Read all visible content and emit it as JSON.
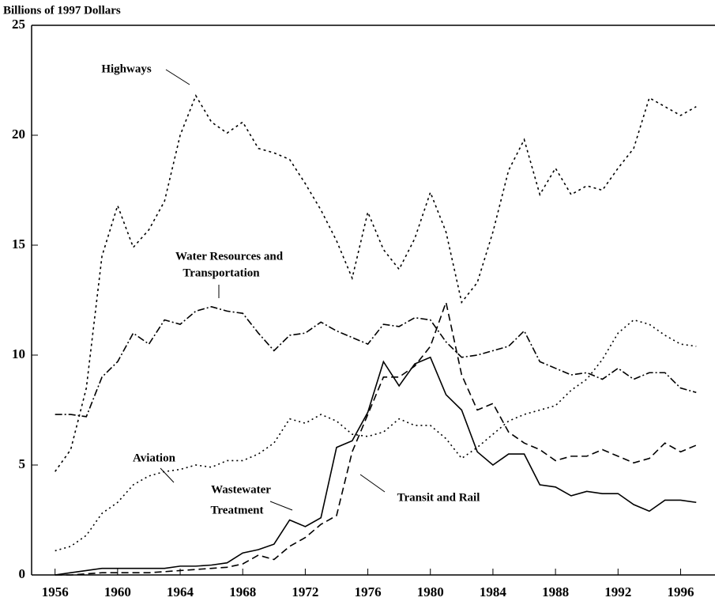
{
  "chart_data": {
    "type": "line",
    "ylabel": "Billions of 1997 Dollars",
    "x": [
      1956,
      1957,
      1958,
      1959,
      1960,
      1961,
      1962,
      1963,
      1964,
      1965,
      1966,
      1967,
      1968,
      1969,
      1970,
      1971,
      1972,
      1973,
      1974,
      1975,
      1976,
      1977,
      1978,
      1979,
      1980,
      1981,
      1982,
      1983,
      1984,
      1985,
      1986,
      1987,
      1988,
      1989,
      1990,
      1991,
      1992,
      1993,
      1994,
      1995,
      1996,
      1997
    ],
    "xlim": [
      1954.5,
      1998.2
    ],
    "xticks": [
      1956,
      1960,
      1964,
      1968,
      1972,
      1976,
      1980,
      1984,
      1988,
      1992,
      1996
    ],
    "ylim": [
      0,
      25
    ],
    "yticks": [
      0,
      5,
      10,
      15,
      20,
      25
    ],
    "series": [
      {
        "name": "Highways",
        "color": "#000000",
        "dash": "3,4",
        "values": [
          4.7,
          5.7,
          8.5,
          14.5,
          16.8,
          14.9,
          15.7,
          17.0,
          20.0,
          21.8,
          20.6,
          20.1,
          20.6,
          19.4,
          19.2,
          18.9,
          17.8,
          16.6,
          15.2,
          13.5,
          16.5,
          14.8,
          13.9,
          15.3,
          17.4,
          15.6,
          12.4,
          13.3,
          15.6,
          18.4,
          19.8,
          17.3,
          18.5,
          17.3,
          17.7,
          17.5,
          18.5,
          19.4,
          21.7,
          21.3,
          20.9,
          21.3
        ]
      },
      {
        "name": "Water Resources and Transportation",
        "color": "#000000",
        "dash": "9,3,2,3",
        "values": [
          7.3,
          7.3,
          7.2,
          9.0,
          9.7,
          11.0,
          10.5,
          11.6,
          11.4,
          12.0,
          12.2,
          12.0,
          11.9,
          11.0,
          10.2,
          10.9,
          11.0,
          11.5,
          11.1,
          10.8,
          10.5,
          11.4,
          11.3,
          11.7,
          11.6,
          10.6,
          9.9,
          10.0,
          10.2,
          10.4,
          11.1,
          9.7,
          9.4,
          9.1,
          9.2,
          8.9,
          9.4,
          8.9,
          9.2,
          9.2,
          8.5,
          8.3
        ]
      },
      {
        "name": "Aviation",
        "color": "#000000",
        "dash": "2,4",
        "values": [
          1.1,
          1.3,
          1.8,
          2.8,
          3.3,
          4.1,
          4.5,
          4.7,
          4.8,
          5.0,
          4.9,
          5.2,
          5.2,
          5.5,
          6.0,
          7.1,
          6.9,
          7.3,
          7.0,
          6.4,
          6.3,
          6.5,
          7.1,
          6.8,
          6.8,
          6.2,
          5.3,
          5.8,
          6.4,
          7.0,
          7.3,
          7.5,
          7.7,
          8.4,
          8.9,
          9.8,
          11.0,
          11.6,
          11.4,
          10.9,
          10.5,
          10.4
        ]
      },
      {
        "name": "Wastewater Treatment",
        "color": "#000000",
        "dash": "none",
        "values": [
          0.0,
          0.1,
          0.2,
          0.3,
          0.3,
          0.3,
          0.3,
          0.3,
          0.4,
          0.4,
          0.45,
          0.55,
          1.0,
          1.15,
          1.4,
          2.5,
          2.2,
          2.6,
          5.8,
          6.1,
          7.4,
          9.7,
          8.6,
          9.6,
          9.9,
          8.2,
          7.5,
          5.6,
          5.0,
          5.5,
          5.5,
          4.1,
          4.0,
          3.6,
          3.8,
          3.7,
          3.7,
          3.2,
          2.9,
          3.4,
          3.4,
          3.3
        ]
      },
      {
        "name": "Transit and Rail",
        "color": "#000000",
        "dash": "9,5",
        "values": [
          0.0,
          0.0,
          0.05,
          0.1,
          0.1,
          0.1,
          0.1,
          0.15,
          0.2,
          0.25,
          0.3,
          0.35,
          0.5,
          0.9,
          0.7,
          1.3,
          1.7,
          2.3,
          2.7,
          5.6,
          7.3,
          9.0,
          9.0,
          9.5,
          10.4,
          12.4,
          9.1,
          7.5,
          7.8,
          6.5,
          6.0,
          5.7,
          5.2,
          5.4,
          5.4,
          5.7,
          5.4,
          5.1,
          5.3,
          6.0,
          5.6,
          5.9
        ]
      }
    ],
    "annotations": [
      [
        "Highways"
      ],
      [
        "Water Resources and",
        "Transportation"
      ],
      [
        "Aviation"
      ],
      [
        "Wastewater",
        "Treatment"
      ],
      [
        "Transit and Rail"
      ]
    ]
  }
}
